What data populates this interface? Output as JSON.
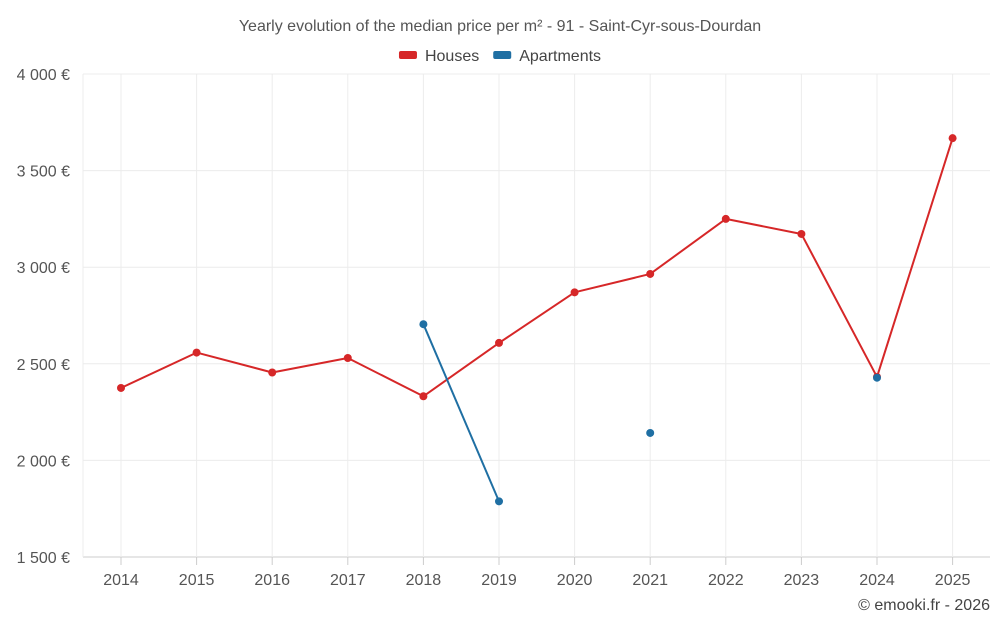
{
  "chart_data": {
    "type": "line",
    "title": "Yearly evolution of the median price per m² - 91 - Saint-Cyr-sous-Dourdan",
    "categories": [
      "2014",
      "2015",
      "2016",
      "2017",
      "2018",
      "2019",
      "2020",
      "2021",
      "2022",
      "2023",
      "2024",
      "2025"
    ],
    "ylim": [
      1500,
      4000
    ],
    "yticks": [
      1500,
      2000,
      2500,
      3000,
      3500,
      4000
    ],
    "ytick_labels": [
      "1 500 €",
      "2 000 €",
      "2 500 €",
      "3 000 €",
      "3 500 €",
      "4 000 €"
    ],
    "grid": true,
    "legend_position": "top-center",
    "series": [
      {
        "name": "Houses",
        "color": "#d62728",
        "values": [
          2375,
          2558,
          2455,
          2530,
          2332,
          2608,
          2870,
          2965,
          3250,
          3172,
          2432,
          3668
        ]
      },
      {
        "name": "Apartments",
        "color": "#1f6fa3",
        "values": [
          null,
          null,
          null,
          null,
          2705,
          1788,
          null,
          2142,
          null,
          null,
          2428,
          null
        ]
      }
    ]
  },
  "credit": "© emooki.fr - 2026"
}
